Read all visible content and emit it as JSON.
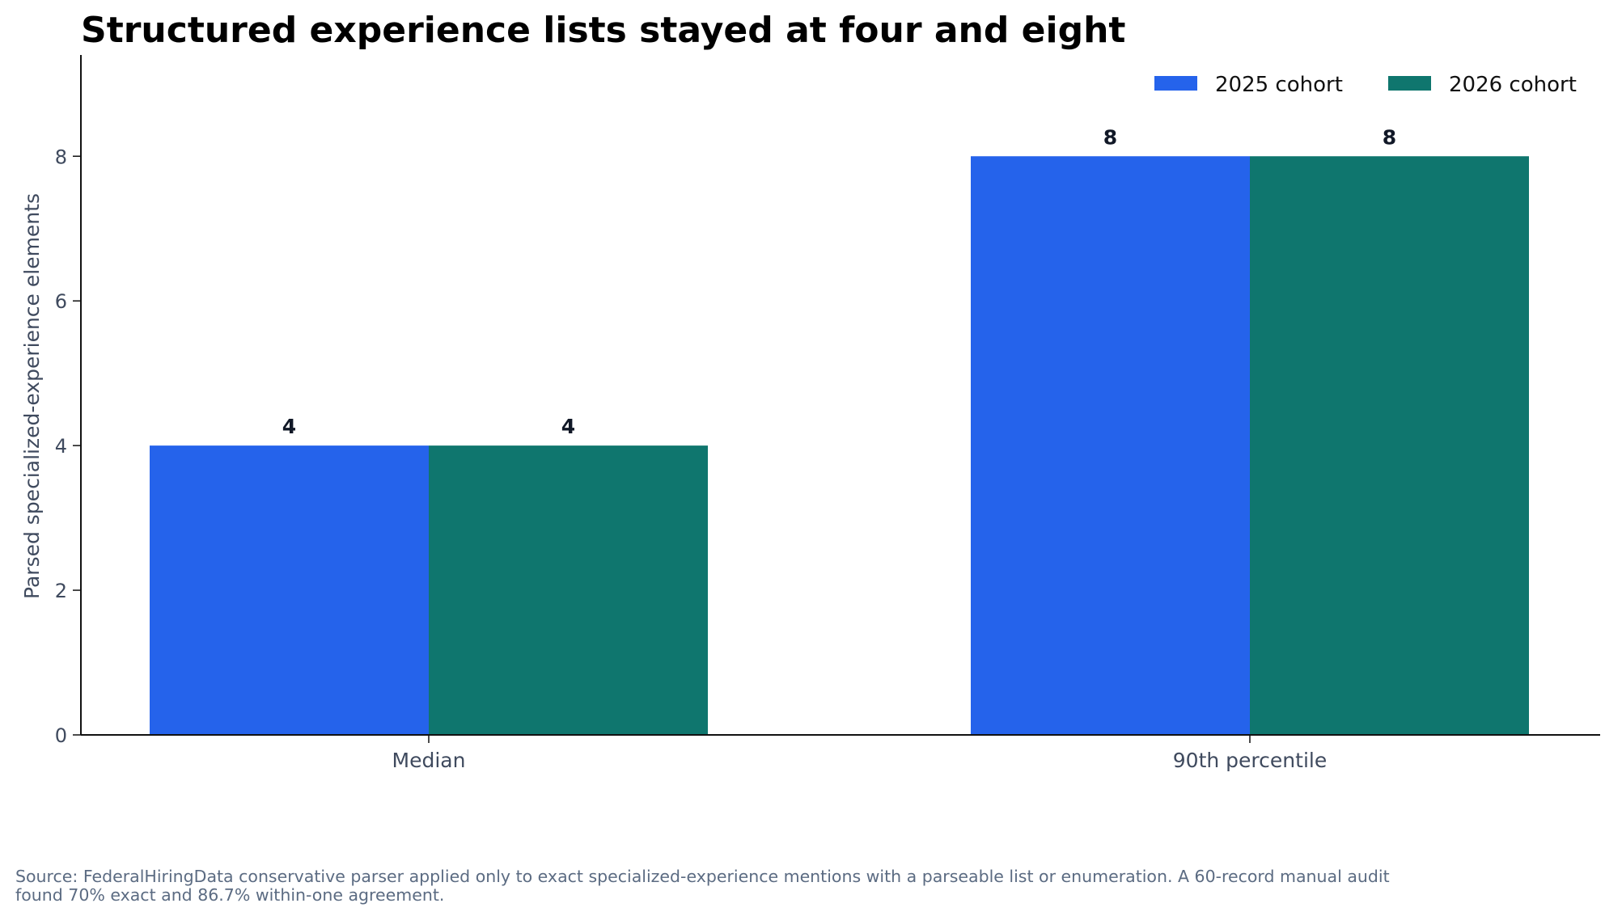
{
  "chart_data": {
    "type": "bar",
    "title": "Structured experience lists stayed at four and eight",
    "xlabel": "",
    "ylabel": "Parsed specialized-experience elements",
    "categories": [
      "Median",
      "90th percentile"
    ],
    "series": [
      {
        "name": "2025 cohort",
        "values": [
          4,
          8
        ],
        "color": "#2563eb"
      },
      {
        "name": "2026 cohort",
        "values": [
          4,
          8
        ],
        "color": "#0f766e"
      }
    ],
    "ylim": [
      0,
      9.4
    ],
    "yticks": [
      0,
      2,
      4,
      6,
      8
    ],
    "data_labels": [
      "4",
      "8",
      "4",
      "8"
    ],
    "legend_position": "top-right",
    "grid": false
  },
  "footer": {
    "source": "Source: FederalHiringData conservative parser applied only to exact specialized-experience mentions with a parseable list or enumeration. A 60-record manual audit found 70% exact and 86.7% within-one agreement."
  }
}
